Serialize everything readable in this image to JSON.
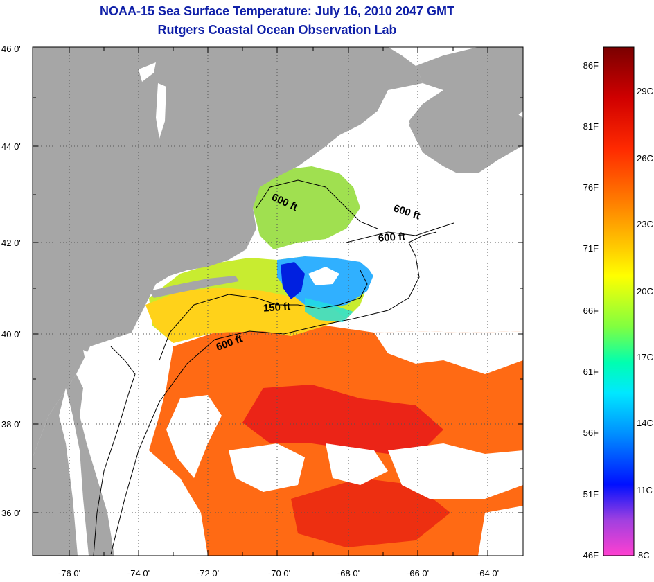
{
  "title": "NOAA-15 Sea Surface Temperature:  July 16, 2010 2047 GMT",
  "subtitle": "Rutgers Coastal Ocean Observation Lab",
  "map": {
    "lat_ticks": [
      "46 0'",
      "44 0'",
      "42 0'",
      "40 0'",
      "38 0'",
      "36 0'"
    ],
    "lon_ticks": [
      "-76 0'",
      "-74 0'",
      "-72 0'",
      "-70 0'",
      "-68 0'",
      "-66 0'",
      "-64 0'"
    ],
    "contour_labels": [
      {
        "text": "600 ft"
      },
      {
        "text": "600 ft"
      },
      {
        "text": "600 ft"
      },
      {
        "text": "150 ft"
      },
      {
        "text": "600 ft"
      }
    ],
    "colors": {
      "land": "#a6a6a6",
      "cloud": "#ffffff"
    }
  },
  "colorbar": {
    "f_labels": [
      "86F",
      "81F",
      "76F",
      "71F",
      "66F",
      "61F",
      "56F",
      "51F",
      "46F"
    ],
    "c_labels": [
      "29C",
      "26C",
      "23C",
      "20C",
      "17C",
      "14C",
      "11C",
      "8C"
    ]
  }
}
